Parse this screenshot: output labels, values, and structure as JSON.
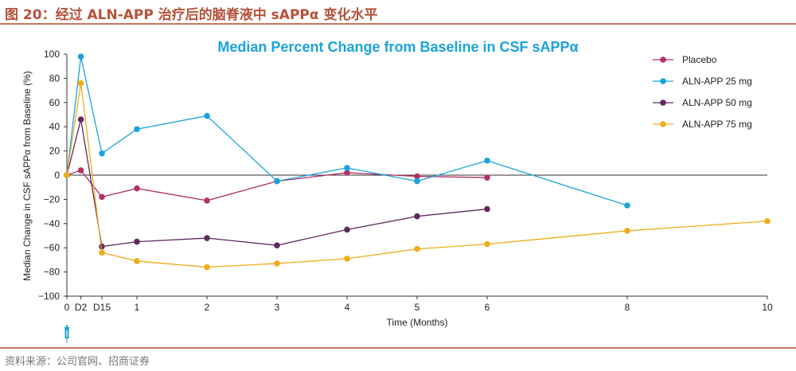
{
  "figure_caption": "图 20：经过 ALN-APP 治疗后的脑脊液中 sAPPα 变化水平",
  "source_note": "资料来源：公司官网、招商证券",
  "chart_data": {
    "type": "line",
    "title": "Median Percent Change from Baseline in CSF sAPPα",
    "xlabel": "Time (Months)",
    "ylabel": "Median Change in CSF sAPPα from Baseline (%)",
    "ylim": [
      -100,
      100
    ],
    "yticks": [
      -100,
      -80,
      -60,
      -40,
      -20,
      0,
      20,
      40,
      60,
      80,
      100
    ],
    "x_tick_labels": [
      {
        "x": 0,
        "label": "0"
      },
      {
        "x": 0.2,
        "label": "D2"
      },
      {
        "x": 0.5,
        "label": "D15"
      },
      {
        "x": 1,
        "label": "1"
      },
      {
        "x": 2,
        "label": "2"
      },
      {
        "x": 3,
        "label": "3"
      },
      {
        "x": 4,
        "label": "4"
      },
      {
        "x": 5,
        "label": "5"
      },
      {
        "x": 6,
        "label": "6"
      },
      {
        "x": 8,
        "label": "8"
      },
      {
        "x": 10,
        "label": "10"
      }
    ],
    "legend_position": "top-right",
    "reference_line_y": 0,
    "dosing_marker": "syringe-icon",
    "series": [
      {
        "name": "Placebo",
        "color": "#b0306a",
        "x": [
          0,
          0.2,
          0.5,
          1,
          2,
          3,
          4,
          5,
          6
        ],
        "y": [
          0,
          4,
          -18,
          -11,
          -21,
          -5,
          2,
          -1,
          -2
        ]
      },
      {
        "name": "ALN-APP 25 mg",
        "color": "#1aa3dc",
        "x": [
          0,
          0.2,
          0.5,
          1,
          2,
          3,
          4,
          5,
          6,
          8
        ],
        "y": [
          0,
          98,
          18,
          38,
          49,
          -5,
          6,
          -5,
          12,
          -25
        ]
      },
      {
        "name": "ALN-APP 50 mg",
        "color": "#5e2a5e",
        "x": [
          0,
          0.2,
          0.5,
          1,
          2,
          3,
          4,
          5,
          6
        ],
        "y": [
          0,
          46,
          -59,
          -55,
          -52,
          -58,
          -45,
          -34,
          -28
        ]
      },
      {
        "name": "ALN-APP 75 mg",
        "color": "#f0ac1a",
        "x": [
          0,
          0.2,
          0.5,
          1,
          2,
          3,
          4,
          5,
          6,
          8,
          10
        ],
        "y": [
          0,
          76,
          -64,
          -71,
          -76,
          -73,
          -69,
          -61,
          -57,
          -46,
          -38
        ]
      }
    ]
  }
}
